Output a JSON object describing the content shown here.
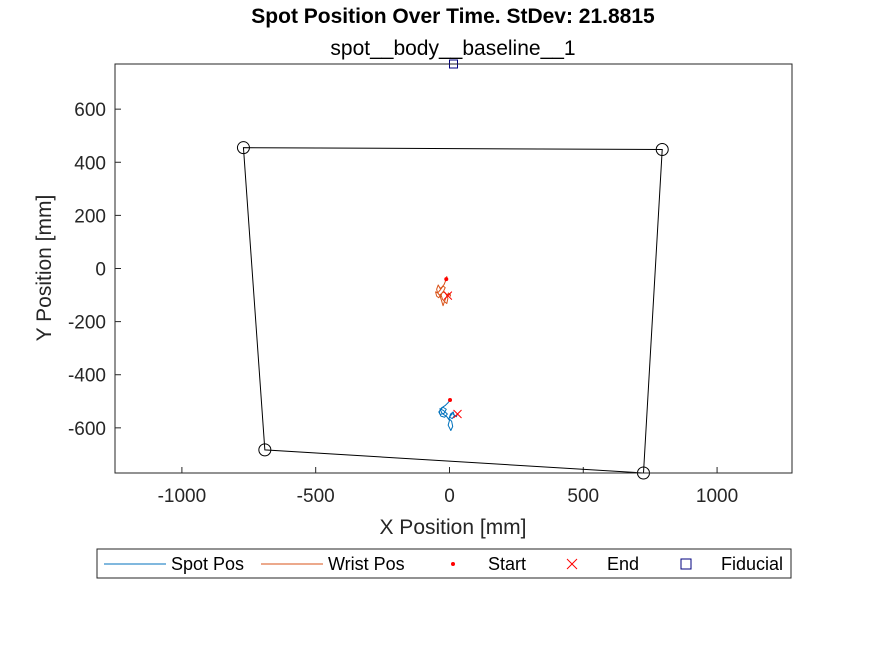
{
  "colors": {
    "spot": "#0072BD",
    "wrist": "#D95319",
    "start": "#FF0000",
    "end": "#FF0000",
    "fiducial": "#00007F",
    "boundary": "#000000"
  },
  "chart_data": {
    "type": "line",
    "title": "Spot Position Over Time. StDev: 21.8815",
    "subtitle": "spot__body__baseline__1",
    "xlabel": "X Position [mm]",
    "ylabel": "Y Position [mm]",
    "xlim": [
      -1250,
      1280
    ],
    "ylim": [
      -770,
      770
    ],
    "xticks": [
      -1000,
      -500,
      0,
      500,
      1000
    ],
    "yticks": [
      -600,
      -400,
      -200,
      0,
      200,
      400,
      600
    ],
    "grid": false,
    "legend_position": "bottom-outside",
    "legend": [
      "Spot Pos",
      "Wrist Pos",
      "Start",
      "End",
      "Fiducial"
    ],
    "boundary": {
      "name": "",
      "points": [
        [
          -770,
          455
        ],
        [
          795,
          448
        ],
        [
          725,
          -770
        ],
        [
          -690,
          -683
        ]
      ],
      "closed": true,
      "marker": "circle"
    },
    "series": [
      {
        "name": "Spot Pos",
        "marker": "none",
        "x": [
          2,
          -5,
          -15,
          -30,
          -38,
          -35,
          -20,
          -12,
          -25,
          -40,
          -32,
          -18,
          -8,
          -22,
          -36,
          -28,
          -10,
          0,
          -5,
          5,
          12,
          8,
          -2,
          4,
          14,
          18,
          10,
          0,
          6,
          10,
          16,
          22,
          26,
          28,
          30
        ],
        "y": [
          -495,
          -505,
          -515,
          -525,
          -538,
          -550,
          -545,
          -530,
          -522,
          -540,
          -556,
          -560,
          -548,
          -535,
          -528,
          -545,
          -558,
          -572,
          -590,
          -610,
          -595,
          -575,
          -565,
          -548,
          -540,
          -555,
          -565,
          -560,
          -552,
          -546,
          -550,
          -555,
          -558,
          -552,
          -548
        ]
      },
      {
        "name": "Wrist Pos",
        "marker": "none",
        "x": [
          -12,
          -10,
          -14,
          -20,
          -28,
          -35,
          -42,
          -48,
          -45,
          -38,
          -30,
          -22,
          -16,
          -24,
          -34,
          -44,
          -52,
          -48,
          -40,
          -32,
          -26,
          -18,
          -10,
          -6,
          -12,
          -20,
          -28,
          -34,
          -30,
          -24,
          -20,
          -14,
          -8,
          -4,
          0,
          4,
          2,
          -2,
          -6
        ],
        "y": [
          -40,
          -30,
          -45,
          -60,
          -70,
          -75,
          -62,
          -78,
          -90,
          -100,
          -95,
          -85,
          -72,
          -66,
          -80,
          -92,
          -88,
          -104,
          -110,
          -98,
          -116,
          -125,
          -132,
          -112,
          -98,
          -88,
          -92,
          -108,
          -120,
          -140,
          -128,
          -112,
          -100,
          -92,
          -98,
          -104,
          -94,
          -96,
          -102
        ]
      },
      {
        "name": "Start",
        "marker": "dot",
        "points": [
          [
            2,
            -495
          ],
          [
            -12,
            -40
          ]
        ]
      },
      {
        "name": "End",
        "marker": "x",
        "points": [
          [
            30,
            -548
          ],
          [
            -6,
            -102
          ]
        ]
      },
      {
        "name": "Fiducial",
        "marker": "square",
        "points": [
          [
            15,
            770
          ]
        ]
      }
    ]
  }
}
